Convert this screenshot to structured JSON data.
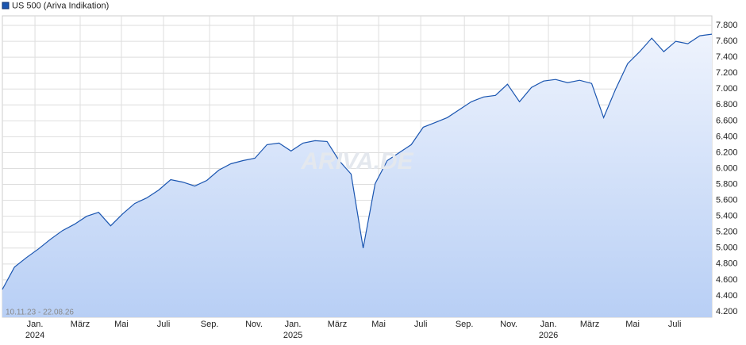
{
  "chart_data": {
    "type": "area",
    "legend": "US 500 (Ariva Indikation)",
    "date_range": "10.11.23 - 22.08.26",
    "watermark": "ARIVA.DE",
    "series": [
      {
        "name": "US 500 (Ariva Indikation)",
        "color": "#1a55b0",
        "values": [
          4480,
          4760,
          4880,
          4990,
          5110,
          5220,
          5300,
          5400,
          5450,
          5280,
          5430,
          5560,
          5630,
          5730,
          5860,
          5830,
          5780,
          5850,
          5980,
          6060,
          6100,
          6130,
          6300,
          6320,
          6220,
          6320,
          6350,
          6340,
          6100,
          5930,
          5000,
          5810,
          6100,
          6200,
          6300,
          6520,
          6580,
          6640,
          6740,
          6840,
          6900,
          6920,
          7060,
          6840,
          7020,
          7100,
          7120,
          7080,
          7110,
          7070,
          6640,
          7000,
          7320,
          7470,
          7640,
          7470,
          7600,
          7570,
          7670,
          7690
        ]
      }
    ],
    "xlim": [
      0,
      59
    ],
    "xticks": [
      {
        "value": 2.71,
        "label": "Jan."
      },
      {
        "value": 6.47,
        "label": "März"
      },
      {
        "value": 9.9,
        "label": "Mai"
      },
      {
        "value": 13.4,
        "label": "Juli"
      },
      {
        "value": 17.23,
        "label": "Sep."
      },
      {
        "value": 20.92,
        "label": "Nov."
      },
      {
        "value": 24.16,
        "label": "Jan."
      },
      {
        "value": 27.85,
        "label": "März"
      },
      {
        "value": 31.29,
        "label": "Mai"
      },
      {
        "value": 34.79,
        "label": "Juli"
      },
      {
        "value": 38.42,
        "label": "Sep."
      },
      {
        "value": 42.11,
        "label": "Nov."
      },
      {
        "value": 45.41,
        "label": "Jan."
      },
      {
        "value": 48.84,
        "label": "März"
      },
      {
        "value": 52.41,
        "label": "Mai"
      },
      {
        "value": 55.91,
        "label": "Juli"
      }
    ],
    "year_labels": [
      {
        "value": 2.71,
        "label": "2024"
      },
      {
        "value": 24.16,
        "label": "2025"
      },
      {
        "value": 45.41,
        "label": "2026"
      }
    ],
    "ylim": [
      4130,
      7920
    ],
    "yticks": [
      {
        "value": 4200,
        "label": "4.200"
      },
      {
        "value": 4400,
        "label": "4.400"
      },
      {
        "value": 4600,
        "label": "4.600"
      },
      {
        "value": 4800,
        "label": "4.800"
      },
      {
        "value": 5000,
        "label": "5.000"
      },
      {
        "value": 5200,
        "label": "5.200"
      },
      {
        "value": 5400,
        "label": "5.400"
      },
      {
        "value": 5600,
        "label": "5.600"
      },
      {
        "value": 5800,
        "label": "5.800"
      },
      {
        "value": 6000,
        "label": "6.000"
      },
      {
        "value": 6200,
        "label": "6.200"
      },
      {
        "value": 6400,
        "label": "6.400"
      },
      {
        "value": 6600,
        "label": "6.600"
      },
      {
        "value": 6800,
        "label": "6.800"
      },
      {
        "value": 7000,
        "label": "7.000"
      },
      {
        "value": 7200,
        "label": "7.200"
      },
      {
        "value": 7400,
        "label": "7.400"
      },
      {
        "value": 7600,
        "label": "7.600"
      },
      {
        "value": 7800,
        "label": "7.800"
      }
    ],
    "grid": true
  }
}
